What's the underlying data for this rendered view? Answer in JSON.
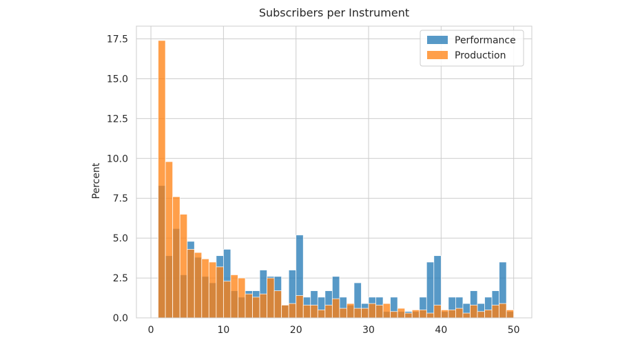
{
  "chart_data": {
    "type": "bar",
    "title": "Subscribers per Instrument",
    "xlabel": "",
    "ylabel": "Percent",
    "xlim": [
      -2,
      52.5
    ],
    "ylim": [
      0,
      18.3
    ],
    "xticks": [
      0,
      10,
      20,
      30,
      40,
      50
    ],
    "yticks": [
      0.0,
      2.5,
      5.0,
      7.5,
      10.0,
      12.5,
      15.0,
      17.5
    ],
    "grid": true,
    "legend_position": "top-right",
    "bin_width": 1,
    "bins_start": [
      1,
      2,
      3,
      4,
      5,
      6,
      7,
      8,
      9,
      10,
      11,
      12,
      13,
      14,
      15,
      16,
      17,
      18,
      19,
      20,
      21,
      22,
      23,
      24,
      25,
      26,
      27,
      28,
      29,
      30,
      31,
      32,
      33,
      34,
      35,
      36,
      37,
      38,
      39,
      40,
      41,
      42,
      43,
      44,
      45,
      46,
      47,
      48,
      49
    ],
    "series": [
      {
        "name": "Performance",
        "color": "#1f77b4",
        "values": [
          8.3,
          3.9,
          5.6,
          2.7,
          4.8,
          3.8,
          2.6,
          2.2,
          3.9,
          4.3,
          1.7,
          1.3,
          1.7,
          1.7,
          3.0,
          2.6,
          2.6,
          0.8,
          3.0,
          5.2,
          1.3,
          1.7,
          1.3,
          1.7,
          2.6,
          1.3,
          0.8,
          2.2,
          0.9,
          1.3,
          1.3,
          0.4,
          1.3,
          0.4,
          0.4,
          0.4,
          1.3,
          3.5,
          3.9,
          0.4,
          1.3,
          1.3,
          0.9,
          1.7,
          0.9,
          1.3,
          1.7,
          3.5,
          0.4
        ]
      },
      {
        "name": "Production",
        "color": "#ff7f0e",
        "values": [
          17.4,
          9.8,
          7.6,
          6.5,
          4.3,
          4.1,
          3.7,
          3.5,
          3.2,
          2.3,
          2.7,
          2.5,
          1.5,
          1.3,
          1.5,
          2.5,
          1.7,
          0.8,
          0.9,
          1.4,
          0.8,
          0.8,
          0.5,
          0.8,
          1.2,
          0.6,
          0.9,
          0.6,
          0.6,
          0.9,
          0.8,
          0.9,
          0.4,
          0.6,
          0.3,
          0.5,
          0.5,
          0.3,
          0.8,
          0.5,
          0.5,
          0.6,
          0.3,
          0.8,
          0.4,
          0.5,
          0.8,
          0.9,
          0.5
        ]
      }
    ]
  }
}
